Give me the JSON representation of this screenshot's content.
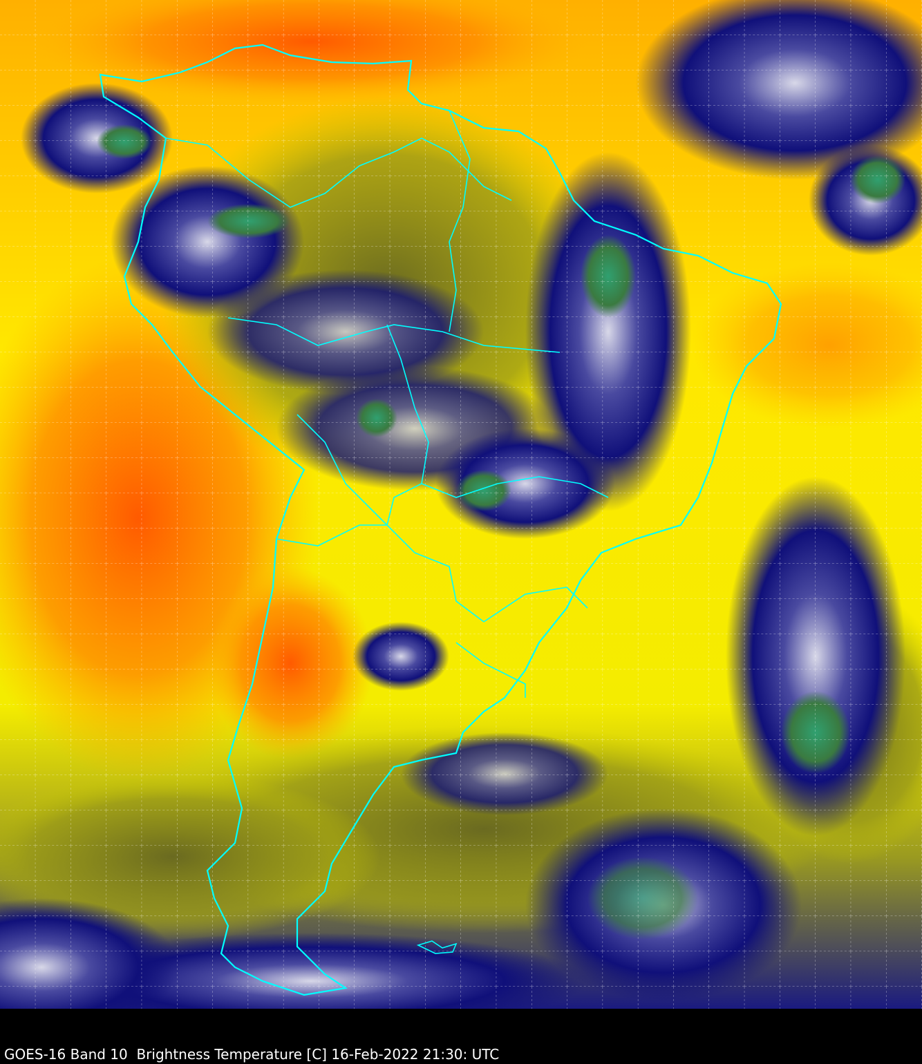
{
  "caption": "GOES-16 Band 10  Brightness Temperature [C] 16-Feb-2022 21:30: UTC",
  "colors": {
    "warm": "#ff6a00",
    "mid": "#ffee00",
    "cool": "#8a8a10",
    "cold": "#0a0a7a",
    "coldest": "#3a8a4a",
    "outline": "#00ffff",
    "grid": "#ffffff"
  }
}
